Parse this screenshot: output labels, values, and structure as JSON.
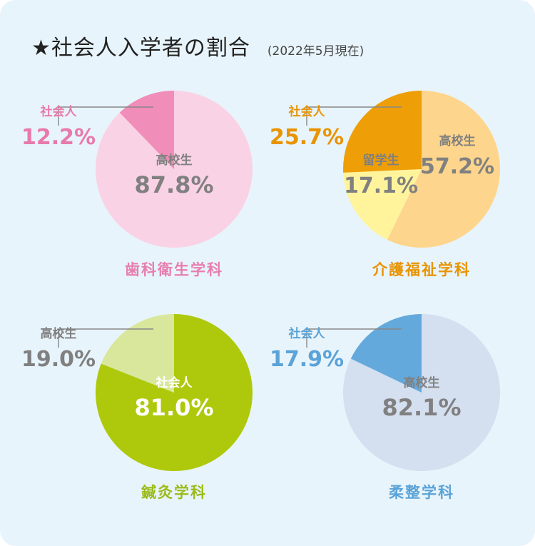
{
  "title": {
    "main": "★社会人入学者の割合",
    "date": "(2022年5月現在)"
  },
  "colors": {
    "background": "#e8f4fb",
    "gray_text": "#808080",
    "leader_line": "#888888"
  },
  "chart_data": [
    {
      "type": "pie",
      "title": "歯科衛生学科",
      "title_color": "#e77fae",
      "slices": [
        {
          "label": "高校生",
          "value": 87.8,
          "display": "87.8%",
          "color": "#fad2e5",
          "text_color": "#808080"
        },
        {
          "label": "社会人",
          "value": 12.2,
          "display": "12.2%",
          "color": "#f08db8",
          "text_color": "#e87aab"
        }
      ]
    },
    {
      "type": "pie",
      "title": "介護福祉学科",
      "title_color": "#e99400",
      "slices": [
        {
          "label": "高校生",
          "value": 57.2,
          "display": "57.2%",
          "color": "#fdd58c",
          "text_color": "#808080"
        },
        {
          "label": "留学生",
          "value": 17.1,
          "display": "17.1%",
          "color": "#fff49c",
          "text_color": "#808080"
        },
        {
          "label": "社会人",
          "value": 25.7,
          "display": "25.7%",
          "color": "#ee9e06",
          "text_color": "#e99400"
        }
      ]
    },
    {
      "type": "pie",
      "title": "鍼灸学科",
      "title_color": "#9cbb1a",
      "slices": [
        {
          "label": "社会人",
          "value": 81.0,
          "display": "81.0%",
          "color": "#aec90c",
          "text_color": "#ffffff"
        },
        {
          "label": "高校生",
          "value": 19.0,
          "display": "19.0%",
          "color": "#d8e79c",
          "text_color": "#808080"
        }
      ]
    },
    {
      "type": "pie",
      "title": "柔整学科",
      "title_color": "#5aa3d8",
      "slices": [
        {
          "label": "高校生",
          "value": 82.1,
          "display": "82.1%",
          "color": "#d4dff0",
          "text_color": "#808080"
        },
        {
          "label": "社会人",
          "value": 17.9,
          "display": "17.9%",
          "color": "#64a9dc",
          "text_color": "#5aa3d8"
        }
      ]
    }
  ]
}
